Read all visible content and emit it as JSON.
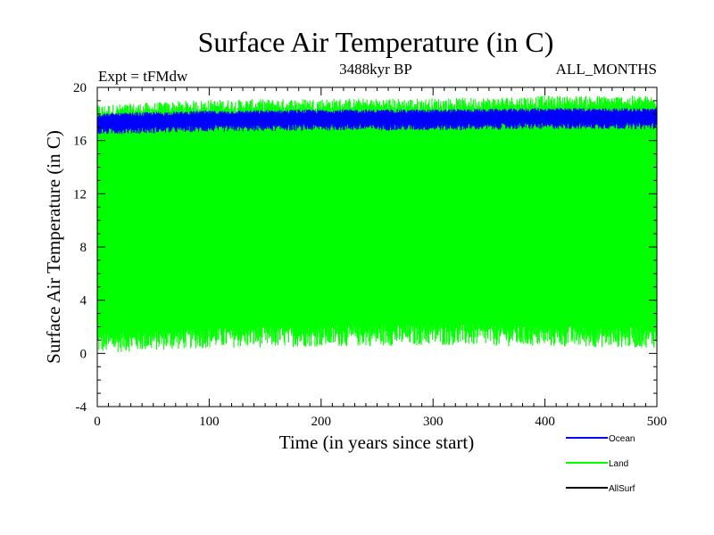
{
  "chart_data": {
    "type": "line",
    "title": "Surface Air Temperature (in C)",
    "subtitle": "3488kyr BP",
    "experiment_label": "Expt = tFMdw",
    "period_label": "ALL_MONTHS",
    "xlabel": "Time (in years since start)",
    "ylabel": "Surface Air Temperature (in C)",
    "xlim": [
      0,
      500
    ],
    "ylim": [
      -4,
      20
    ],
    "x_ticks": [
      0,
      100,
      200,
      300,
      400,
      500
    ],
    "y_ticks": [
      -4,
      0,
      4,
      8,
      12,
      16,
      20
    ],
    "x_tick_labels": [
      "0",
      "100",
      "200",
      "300",
      "400",
      "500"
    ],
    "y_tick_labels": [
      "-4",
      "0",
      "4",
      "8",
      "12",
      "16",
      "20"
    ],
    "legend_position": "bottom-right",
    "series": [
      {
        "name": "Ocean",
        "color": "#0000ff",
        "band": {
          "x": [
            0,
            100,
            200,
            300,
            400,
            500
          ],
          "min": [
            16.7,
            16.9,
            17.0,
            17.0,
            17.1,
            17.1
          ],
          "max": [
            17.9,
            18.1,
            18.2,
            18.2,
            18.3,
            18.3
          ]
        }
      },
      {
        "name": "Land",
        "color": "#00ff00",
        "band": {
          "x": [
            0,
            100,
            200,
            300,
            400,
            500
          ],
          "min": [
            0.8,
            1.2,
            1.3,
            1.4,
            1.3,
            1.2
          ],
          "max": [
            18.2,
            18.6,
            18.7,
            18.7,
            18.9,
            18.9
          ]
        }
      },
      {
        "name": "AllSurf",
        "color": "#000000",
        "band": null
      }
    ]
  }
}
